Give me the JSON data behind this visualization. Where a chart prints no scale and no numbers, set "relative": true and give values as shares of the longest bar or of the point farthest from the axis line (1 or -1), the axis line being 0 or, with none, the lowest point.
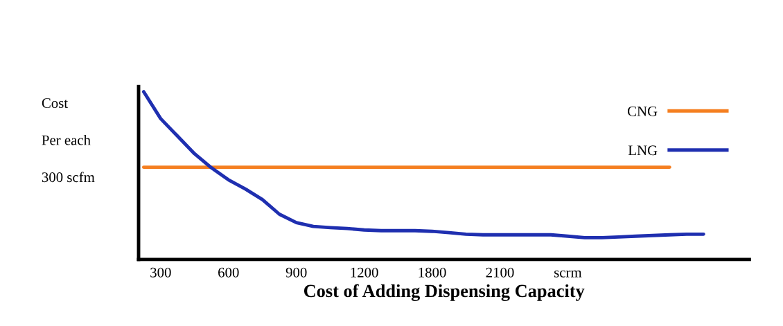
{
  "chart_data": {
    "type": "line",
    "relative": true,
    "ylabel": "Cost\nPer each\n300 scfm",
    "xlabel": "Cost of Adding Dispensing Capacity",
    "categories": [
      null,
      "300",
      null,
      null,
      null,
      "600",
      null,
      null,
      null,
      "900",
      null,
      null,
      null,
      "1200",
      null,
      null,
      null,
      "1800",
      null,
      null,
      null,
      "2100",
      null,
      null,
      null,
      "scrm",
      null,
      null,
      null,
      null,
      null,
      null,
      null,
      null
    ],
    "series": [
      {
        "name": "CNG",
        "color": "#f57f20",
        "values": [
          0.55,
          0.55,
          0.55,
          0.55,
          0.55,
          0.55,
          0.55,
          0.55,
          0.55,
          0.55,
          0.55,
          0.55,
          0.55,
          0.55,
          0.55,
          0.55,
          0.55,
          0.55,
          0.55,
          0.55,
          0.55,
          0.55,
          0.55,
          0.55,
          0.55,
          0.55,
          0.55,
          0.55,
          0.55,
          0.55,
          0.55,
          0.55,
          null,
          null
        ]
      },
      {
        "name": "LNG",
        "color": "#1f2fb0",
        "values": [
          1.0,
          0.84,
          0.735,
          0.63,
          0.546,
          0.475,
          0.42,
          0.357,
          0.27,
          0.22,
          0.197,
          0.19,
          0.185,
          0.176,
          0.172,
          0.172,
          0.172,
          0.168,
          0.16,
          0.151,
          0.147,
          0.147,
          0.147,
          0.147,
          0.147,
          0.139,
          0.13,
          0.13,
          0.134,
          0.139,
          0.143,
          0.147,
          0.151,
          0.151
        ]
      }
    ],
    "legend": "top right",
    "grid": false
  }
}
